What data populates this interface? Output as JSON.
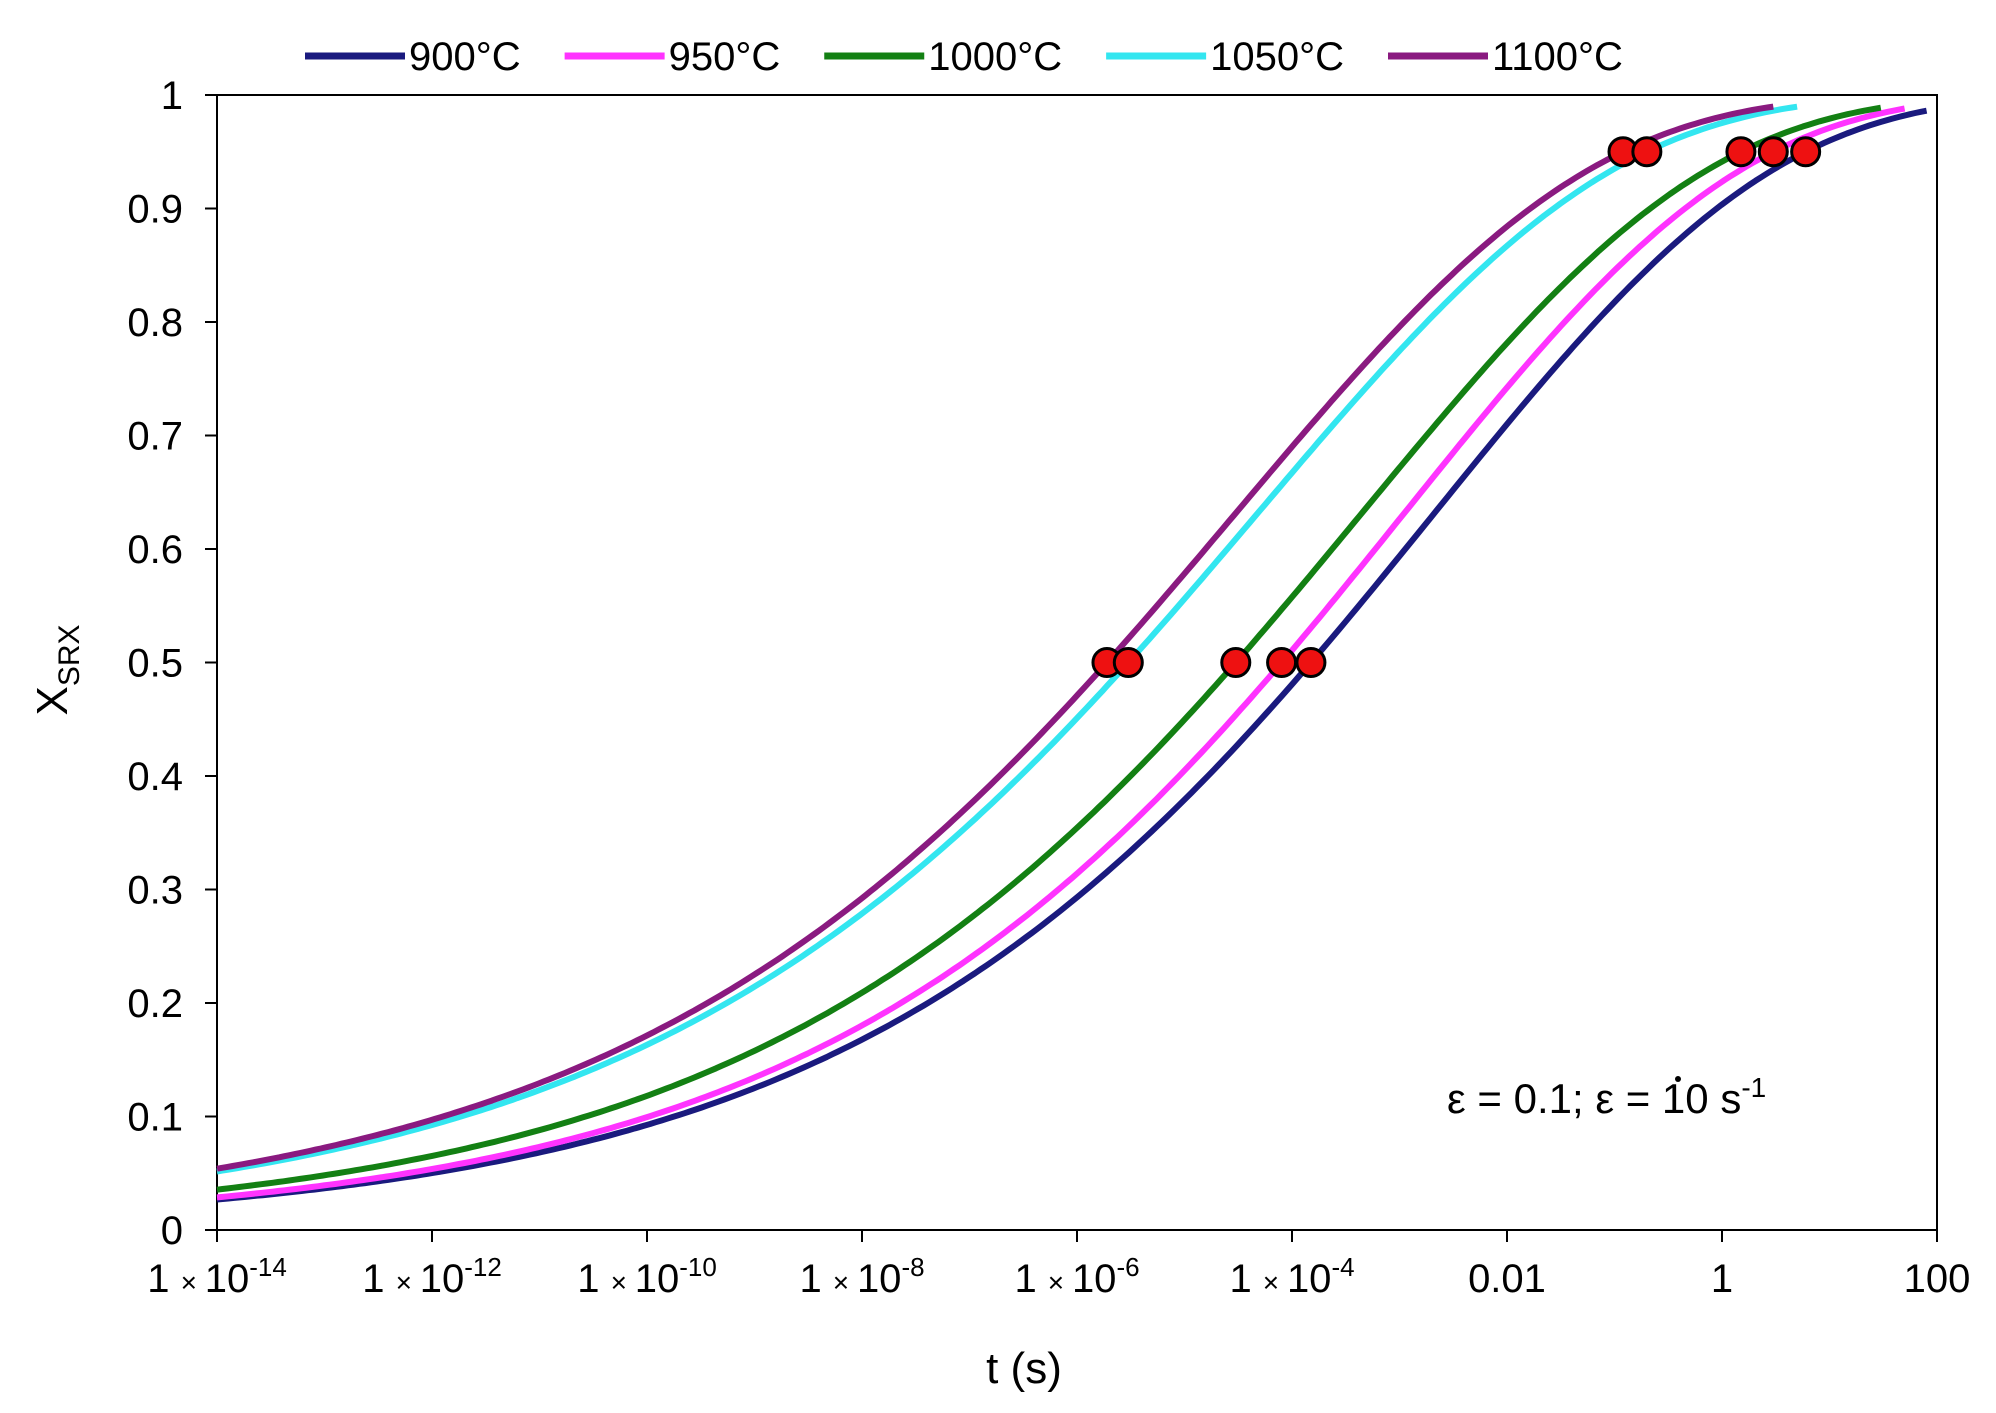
{
  "chart_data": {
    "type": "line",
    "xscale": "log",
    "xlabel": "t (s)",
    "ylabel": "X",
    "ylabel_sub": "SRX",
    "xlim": [
      1e-14,
      100
    ],
    "ylim": [
      0,
      1
    ],
    "grid": false,
    "legend_position": "top",
    "x_ticks": [
      {
        "value": 1e-14,
        "mantissa": "1",
        "times": "×",
        "base": "10",
        "exp": "-14"
      },
      {
        "value": 1e-12,
        "mantissa": "1",
        "times": "×",
        "base": "10",
        "exp": "-12"
      },
      {
        "value": 1e-10,
        "mantissa": "1",
        "times": "×",
        "base": "10",
        "exp": "-10"
      },
      {
        "value": 1e-08,
        "mantissa": "1",
        "times": "×",
        "base": "10",
        "exp": "-8"
      },
      {
        "value": 1e-06,
        "mantissa": "1",
        "times": "×",
        "base": "10",
        "exp": "-6"
      },
      {
        "value": 0.0001,
        "mantissa": "1",
        "times": "×",
        "base": "10",
        "exp": "-4"
      },
      {
        "value": 0.01,
        "label": "0.01"
      },
      {
        "value": 1,
        "label": "1"
      },
      {
        "value": 100,
        "label": "100"
      }
    ],
    "y_ticks": [
      {
        "value": 0,
        "label": "0"
      },
      {
        "value": 0.1,
        "label": "0.1"
      },
      {
        "value": 0.2,
        "label": "0.2"
      },
      {
        "value": 0.3,
        "label": "0.3"
      },
      {
        "value": 0.4,
        "label": "0.4"
      },
      {
        "value": 0.5,
        "label": "0.5"
      },
      {
        "value": 0.6,
        "label": "0.6"
      },
      {
        "value": 0.7,
        "label": "0.7"
      },
      {
        "value": 0.8,
        "label": "0.8"
      },
      {
        "value": 0.9,
        "label": "0.9"
      },
      {
        "value": 1,
        "label": "1"
      }
    ],
    "series": [
      {
        "name": "900°C",
        "color": "#1a1a7e",
        "t50": 0.00015,
        "t95": 6,
        "t_end": 80
      },
      {
        "name": "950°C",
        "color": "#ff33ff",
        "t50": 8e-05,
        "t95": 3,
        "t_end": 50
      },
      {
        "name": "1000°C",
        "color": "#138013",
        "t50": 3e-05,
        "t95": 1.5,
        "t_end": 30
      },
      {
        "name": "1050°C",
        "color": "#33e6f0",
        "t50": 3e-06,
        "t95": 0.2,
        "t_end": 5
      },
      {
        "name": "1100°C",
        "color": "#8a1a80",
        "t50": 1.9e-06,
        "t95": 0.12,
        "t_end": 3
      }
    ],
    "markers": {
      "color": "#ee1111",
      "points": [
        {
          "x": 1.9e-06,
          "y": 0.5
        },
        {
          "x": 3e-06,
          "y": 0.5
        },
        {
          "x": 3e-05,
          "y": 0.5
        },
        {
          "x": 8e-05,
          "y": 0.5
        },
        {
          "x": 0.00015,
          "y": 0.5
        },
        {
          "x": 0.12,
          "y": 0.95
        },
        {
          "x": 0.2,
          "y": 0.95
        },
        {
          "x": 1.5,
          "y": 0.95
        },
        {
          "x": 3,
          "y": 0.95
        },
        {
          "x": 6,
          "y": 0.95
        }
      ]
    },
    "annotation": {
      "eps_symbol": "ε",
      "eps_value": " = 0.1; ",
      "rate_symbol": "ε",
      "rate_value": " = 10 s",
      "rate_exp": "-1"
    }
  }
}
